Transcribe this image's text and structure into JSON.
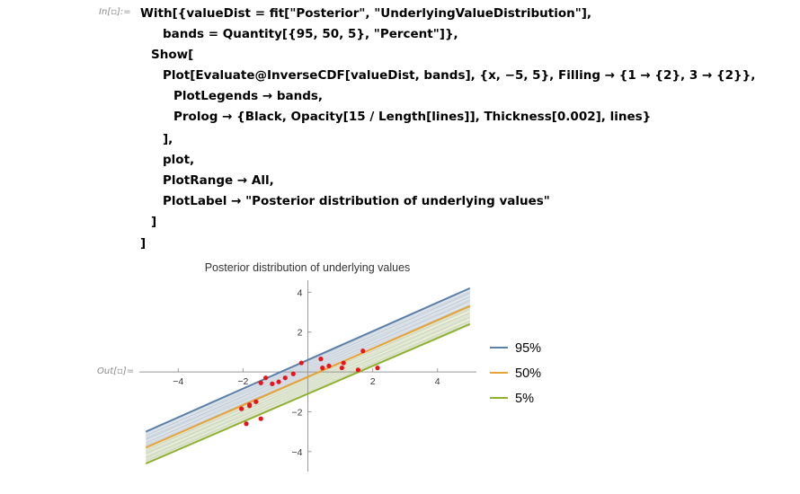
{
  "cell": {
    "in_label": "In[▫]:=",
    "out_label": "Out[▫]="
  },
  "code_lines": [
    "With[{valueDist = fit[\"Posterior\", \"UnderlyingValueDistribution\"],",
    "bands = Quantity[{95, 50, 5}, \"Percent\"]},",
    "Show[",
    "Plot[Evaluate@InverseCDF[valueDist, bands], {x, −5, 5}, Filling → {1 → {2}, 3 → {2}},",
    "PlotLegends → bands,",
    "Prolog → {Black, Opacity[15 / Length[lines]], Thickness[0.002], lines}",
    "],",
    "plot,",
    "PlotRange → All,",
    "PlotLabel → \"Posterior distribution of underlying values\"",
    "]",
    "]"
  ],
  "chart_data": {
    "type": "line",
    "title": "Posterior distribution of underlying values",
    "xlabel": "",
    "ylabel": "",
    "xlim": [
      -5.2,
      5.2
    ],
    "ylim": [
      -5.0,
      4.6
    ],
    "x_ticks": [
      -4,
      -2,
      2,
      4
    ],
    "x_tick_labels": [
      "−4",
      "−2",
      "2",
      "4"
    ],
    "y_ticks": [
      -4,
      -2,
      2,
      4
    ],
    "y_tick_labels": [
      "−4",
      "−2",
      "2",
      "4"
    ],
    "grid": false,
    "legend_position": "right",
    "series": [
      {
        "name": "95%",
        "color": "#5a7fa8",
        "x": [
          -5,
          5
        ],
        "y": [
          -3.0,
          4.2
        ]
      },
      {
        "name": "50%",
        "color": "#e6a235",
        "x": [
          -5,
          5
        ],
        "y": [
          -3.8,
          3.3
        ]
      },
      {
        "name": "5%",
        "color": "#8fb02f",
        "x": [
          -5,
          5
        ],
        "y": [
          -4.6,
          2.4
        ]
      }
    ],
    "fills": [
      {
        "from": "95%",
        "to": "50%",
        "color": "#5a7fa8"
      },
      {
        "from": "5%",
        "to": "50%",
        "color": "#8fb02f"
      }
    ],
    "points": {
      "color": "#e8141c",
      "x": [
        -2.05,
        -1.9,
        -1.8,
        -1.6,
        -1.45,
        -1.3,
        -1.1,
        -0.9,
        -0.7,
        -0.45,
        -0.2,
        0.4,
        0.45,
        0.65,
        1.05,
        1.1,
        1.55,
        1.7,
        2.15,
        -1.45,
        -1.8
      ],
      "y": [
        -1.85,
        -2.6,
        -1.65,
        -1.5,
        -0.55,
        -0.3,
        -0.6,
        -0.5,
        -0.3,
        -0.1,
        0.45,
        0.65,
        0.2,
        0.3,
        0.2,
        0.45,
        0.1,
        1.05,
        0.2,
        -2.35,
        -1.7
      ]
    }
  }
}
